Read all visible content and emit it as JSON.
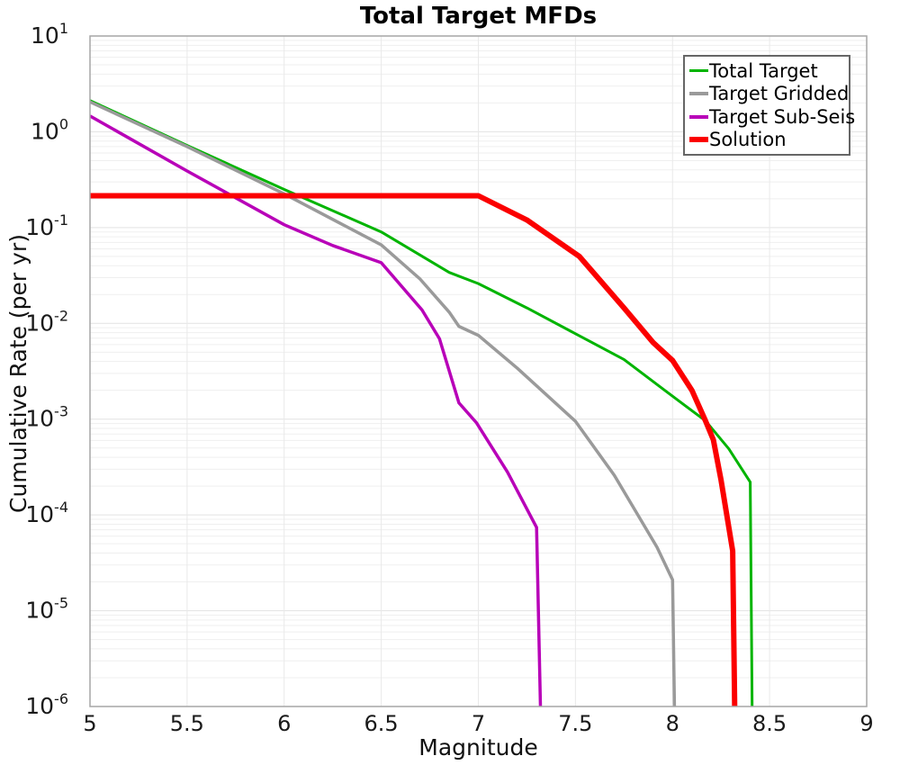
{
  "chart_data": {
    "type": "line",
    "title": "Total Target MFDs",
    "xlabel": "Magnitude",
    "ylabel": "Cumulative Rate (per yr)",
    "x_axis": {
      "min": 5,
      "max": 9,
      "tick_step": 0.5,
      "tick_labels": [
        "5",
        "5.5",
        "6",
        "6.5",
        "7",
        "7.5",
        "8",
        "8.5",
        "9"
      ]
    },
    "y_axis": {
      "scale": "log",
      "min_exponent": -6,
      "max_exponent": 1,
      "tick_exponents": [
        1,
        0,
        -1,
        -2,
        -3,
        -4,
        -5,
        -6
      ],
      "tick_base": "10"
    },
    "grid": {
      "major": true,
      "minor_log": true,
      "vertical": true
    },
    "legend": {
      "position": "top-right"
    },
    "series": [
      {
        "name": "Total Target",
        "color": "#00b400",
        "width": 3,
        "points": [
          [
            5.0,
            2.12
          ],
          [
            5.5,
            0.72
          ],
          [
            6.0,
            0.25
          ],
          [
            6.5,
            0.09
          ],
          [
            6.85,
            0.034
          ],
          [
            7.0,
            0.026
          ],
          [
            7.25,
            0.0145
          ],
          [
            7.5,
            0.0078
          ],
          [
            7.75,
            0.0042
          ],
          [
            7.96,
            0.002
          ],
          [
            8.17,
            0.00096
          ],
          [
            8.29,
            0.00049
          ],
          [
            8.4,
            0.00022
          ],
          [
            8.41,
            1e-06
          ]
        ]
      },
      {
        "name": "Target Gridded",
        "color": "#9a9a9a",
        "width": 3.5,
        "points": [
          [
            5.0,
            2.05
          ],
          [
            5.5,
            0.7
          ],
          [
            6.0,
            0.225
          ],
          [
            6.5,
            0.066
          ],
          [
            6.7,
            0.029
          ],
          [
            6.85,
            0.0131
          ],
          [
            6.9,
            0.0093
          ],
          [
            7.0,
            0.0075
          ],
          [
            7.2,
            0.0034
          ],
          [
            7.5,
            0.00095
          ],
          [
            7.7,
            0.00026
          ],
          [
            7.92,
            4.6e-05
          ],
          [
            8.0,
            2.1e-05
          ],
          [
            8.01,
            1e-06
          ]
        ]
      },
      {
        "name": "Target Sub-Seis",
        "color": "#b800b8",
        "width": 3.5,
        "points": [
          [
            5.0,
            1.46
          ],
          [
            5.5,
            0.39
          ],
          [
            6.0,
            0.107
          ],
          [
            6.25,
            0.065
          ],
          [
            6.5,
            0.043
          ],
          [
            6.71,
            0.0138
          ],
          [
            6.8,
            0.0069
          ],
          [
            6.9,
            0.00148
          ],
          [
            6.99,
            0.00092
          ],
          [
            7.15,
            0.00028
          ],
          [
            7.3,
            7.4e-05
          ],
          [
            7.32,
            1e-06
          ]
        ]
      },
      {
        "name": "Solution",
        "color": "#fb0000",
        "width": 6,
        "points": [
          [
            5.0,
            0.215
          ],
          [
            7.0,
            0.215
          ],
          [
            7.25,
            0.12
          ],
          [
            7.52,
            0.05
          ],
          [
            7.75,
            0.0145
          ],
          [
            7.9,
            0.0063
          ],
          [
            8.0,
            0.0041
          ],
          [
            8.1,
            0.002
          ],
          [
            8.17,
            0.00096
          ],
          [
            8.21,
            0.00061
          ],
          [
            8.25,
            0.00023
          ],
          [
            8.31,
            4.2e-05
          ],
          [
            8.32,
            1e-06
          ]
        ]
      }
    ],
    "colors": {
      "frame": "#a6a6a6",
      "grid_major": "#e2e2e2",
      "grid_minor": "#efefef",
      "grid_vertical": "#e9e9e9",
      "tick_text": "#1a1a1a"
    }
  }
}
